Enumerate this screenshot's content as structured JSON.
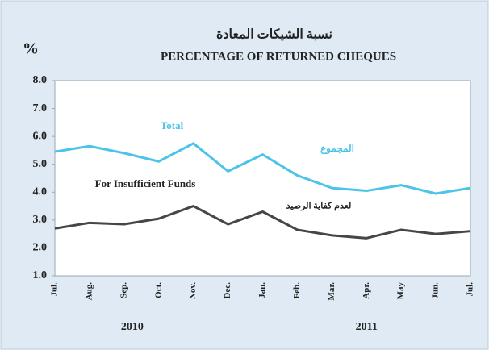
{
  "chart_data": {
    "type": "line",
    "unit_label": "%",
    "title_ar": "نسبة الشيكات المعادة",
    "title": "PERCENTAGE OF RETURNED CHEQUES",
    "categories": [
      "Jul.",
      "Aug.",
      "Sep.",
      "Oct.",
      "Nov.",
      "Dec.",
      "Jan.",
      "Feb.",
      "Mar.",
      "Apr.",
      "May",
      "Jun.",
      "Jul."
    ],
    "x_groups": [
      "2010",
      "2011"
    ],
    "series": [
      {
        "name": "Total",
        "name_ar": "المجموع",
        "color": "#4cc4ea",
        "values": [
          5.45,
          5.65,
          5.4,
          5.1,
          5.75,
          4.75,
          5.35,
          4.6,
          4.15,
          4.05,
          4.25,
          3.95,
          4.15
        ]
      },
      {
        "name": "For Insufficient Funds",
        "name_ar": "لعدم كفاية الرصيد",
        "color": "#464646",
        "values": [
          2.7,
          2.9,
          2.85,
          3.05,
          3.5,
          2.85,
          3.3,
          2.65,
          2.45,
          2.35,
          2.65,
          2.5,
          2.6
        ]
      }
    ],
    "ylim": [
      1,
      8
    ],
    "yticks": [
      {
        "value": 1,
        "label": "1.0"
      },
      {
        "value": 2,
        "label": "2.0"
      },
      {
        "value": 3,
        "label": "3.0"
      },
      {
        "value": 4,
        "label": "4.0"
      },
      {
        "value": 5,
        "label": "5.0"
      },
      {
        "value": 6,
        "label": "6.0"
      },
      {
        "value": 7,
        "label": "7.0"
      },
      {
        "value": 8,
        "label": "8.0"
      }
    ],
    "grid": false
  }
}
